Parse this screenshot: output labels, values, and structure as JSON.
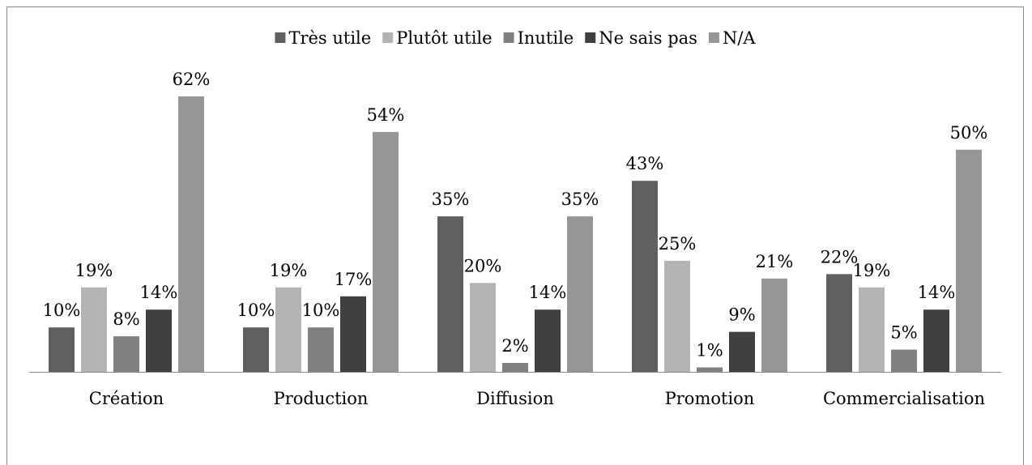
{
  "chart_data": {
    "type": "bar",
    "categories": [
      "Création",
      "Production",
      "Diffusion",
      "Promotion",
      "Commercialisation"
    ],
    "series": [
      {
        "name": "Très utile",
        "color": "#606060",
        "values": [
          10,
          10,
          35,
          43,
          22
        ],
        "value_labels": [
          "10%",
          "10%",
          "35%",
          "43%",
          "22%"
        ]
      },
      {
        "name": "Plutôt utile",
        "color": "#b3b3b3",
        "values": [
          19,
          19,
          20,
          25,
          19
        ],
        "value_labels": [
          "19%",
          "19%",
          "20%",
          "25%",
          "19%"
        ]
      },
      {
        "name": "Inutile",
        "color": "#808080",
        "values": [
          8,
          10,
          2,
          1,
          5
        ],
        "value_labels": [
          "8%",
          "10%",
          "2%",
          "1%",
          "5%"
        ]
      },
      {
        "name": "Ne sais pas",
        "color": "#404040",
        "values": [
          14,
          17,
          14,
          9,
          14
        ],
        "value_labels": [
          "14%",
          "17%",
          "14%",
          "9%",
          "14%"
        ]
      },
      {
        "name": "N/A",
        "color": "#969696",
        "values": [
          62,
          54,
          35,
          21,
          50
        ],
        "value_labels": [
          "62%",
          "54%",
          "35%",
          "21%",
          "50%"
        ]
      }
    ],
    "legend": "top"
  }
}
